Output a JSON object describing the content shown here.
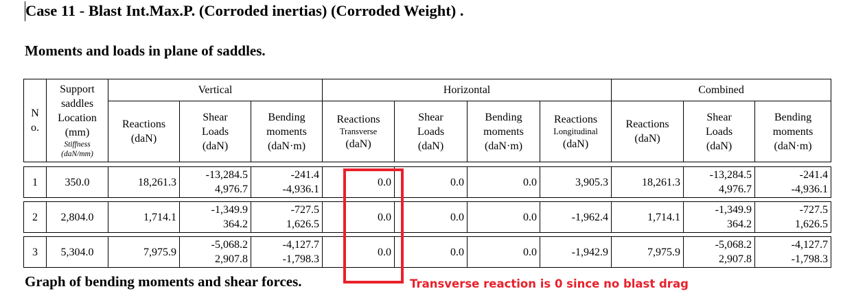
{
  "doc": {
    "case_title": "Case 11 - Blast Int.Max.P. (Corroded inertias) (Corroded Weight) .",
    "section_title": "Moments and loads in plane of saddles.",
    "graph_title": "Graph of bending moments and shear forces."
  },
  "table": {
    "header": {
      "no": "N o.",
      "support": {
        "line1": "Support",
        "line2": "saddles",
        "line3": "Location",
        "line4": "(mm)",
        "stiffness": "Stiffness",
        "stiffness_unit": "(daN/mm)"
      },
      "vertical": "Vertical",
      "horizontal": "Horizontal",
      "combined": "Combined",
      "reactions": "Reactions",
      "transverse": "Transverse",
      "longitudinal": "Longitudinal",
      "shear": "Shear",
      "loads": "Loads",
      "bending": "Bending",
      "moments": "moments",
      "dan": "(daN)",
      "danm": "(daN·m)"
    },
    "rows": [
      {
        "no": "1",
        "location": "350.0",
        "v_reactions": "18,261.3",
        "v_shear": [
          "-13,284.5",
          "4,976.7"
        ],
        "v_bending": [
          "-241.4",
          "-4,936.1"
        ],
        "h_reactions_transverse": "0.0",
        "h_shear": "0.0",
        "h_bending": "0.0",
        "h_reactions_longitudinal": "3,905.3",
        "c_reactions": "18,261.3",
        "c_shear": [
          "-13,284.5",
          "4,976.7"
        ],
        "c_bending": [
          "-241.4",
          "-4,936.1"
        ]
      },
      {
        "no": "2",
        "location": "2,804.0",
        "v_reactions": "1,714.1",
        "v_shear": [
          "-1,349.9",
          "364.2"
        ],
        "v_bending": [
          "-727.5",
          "1,626.5"
        ],
        "h_reactions_transverse": "0.0",
        "h_shear": "0.0",
        "h_bending": "0.0",
        "h_reactions_longitudinal": "-1,962.4",
        "c_reactions": "1,714.1",
        "c_shear": [
          "-1,349.9",
          "364.2"
        ],
        "c_bending": [
          "-727.5",
          "1,626.5"
        ]
      },
      {
        "no": "3",
        "location": "5,304.0",
        "v_reactions": "7,975.9",
        "v_shear": [
          "-5,068.2",
          "2,907.8"
        ],
        "v_bending": [
          "-4,127.7",
          "-1,798.3"
        ],
        "h_reactions_transverse": "0.0",
        "h_shear": "0.0",
        "h_bending": "0.0",
        "h_reactions_longitudinal": "-1,942.9",
        "c_reactions": "7,975.9",
        "c_shear": [
          "-5,068.2",
          "2,907.8"
        ],
        "c_bending": [
          "-4,127.7",
          "-1,798.3"
        ]
      }
    ]
  },
  "annotation": {
    "text": "Transverse reaction is 0 since no blast drag",
    "color": "#e8212c"
  }
}
